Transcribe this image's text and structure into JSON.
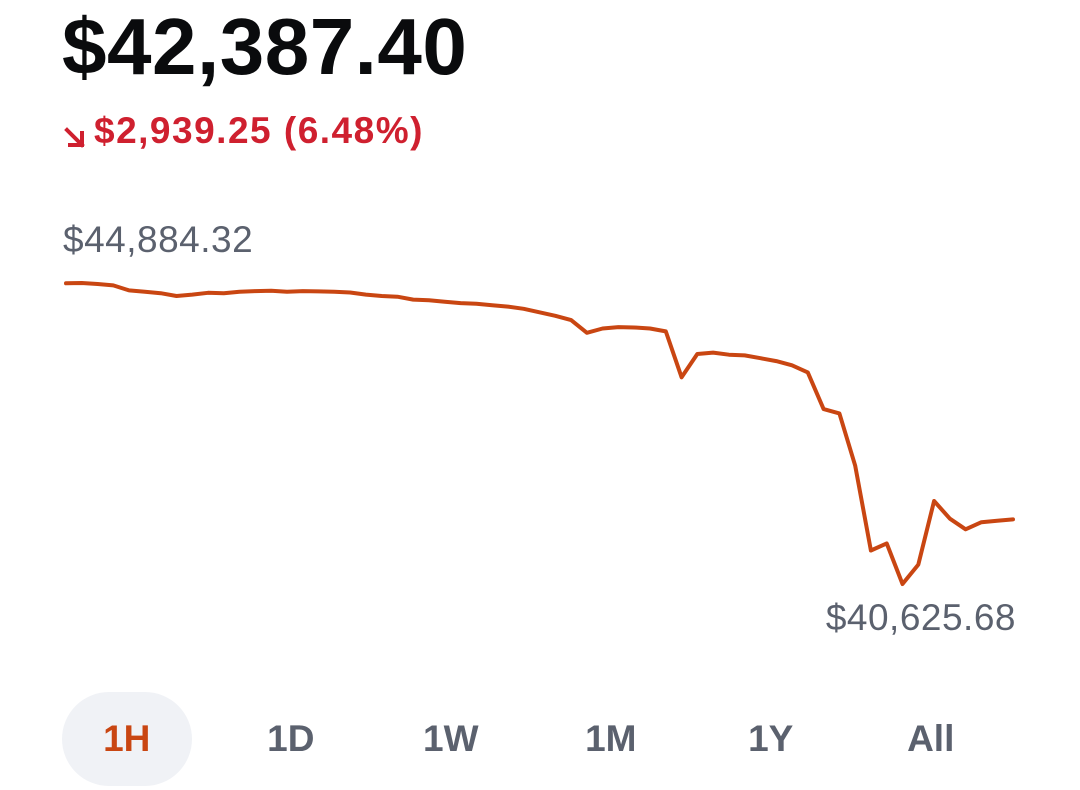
{
  "header": {
    "price": "$42,387.40",
    "change": "$2,939.25 (6.48%)",
    "change_direction": "down",
    "change_color": "#cf202f",
    "arrow_icon": "arrow-down-right-icon"
  },
  "chart_data": {
    "type": "line",
    "high_label": "$44,884.32",
    "low_label": "$40,625.68",
    "line_color": "#c94612",
    "grid": false,
    "x": [
      0,
      1,
      2,
      3,
      4,
      5,
      6,
      7,
      8,
      9,
      10,
      11,
      12,
      13,
      14,
      15,
      16,
      17,
      18,
      19,
      20,
      21,
      22,
      23,
      24,
      25,
      26,
      27,
      28,
      29,
      30,
      31,
      32,
      33,
      34,
      35,
      36,
      37,
      38,
      39,
      40,
      41,
      42,
      43,
      44,
      45,
      46,
      47,
      48,
      49,
      50,
      51,
      52,
      53,
      54,
      55,
      56,
      57,
      58,
      59,
      60
    ],
    "series": [
      {
        "values": [
          44880,
          44884,
          44870,
          44850,
          44780,
          44760,
          44740,
          44700,
          44720,
          44745,
          44740,
          44760,
          44770,
          44775,
          44760,
          44770,
          44765,
          44760,
          44750,
          44720,
          44700,
          44690,
          44650,
          44640,
          44620,
          44600,
          44590,
          44570,
          44550,
          44520,
          44470,
          44420,
          44360,
          44180,
          44240,
          44260,
          44255,
          44240,
          44200,
          43550,
          43880,
          43900,
          43870,
          43860,
          43820,
          43780,
          43720,
          43620,
          43100,
          43040,
          42300,
          41100,
          41200,
          40625,
          40900,
          41800,
          41550,
          41400,
          41500,
          41520,
          41540
        ]
      }
    ],
    "ylim": [
      40625.68,
      44884.32
    ]
  },
  "tabs": {
    "items": [
      {
        "label": "1H"
      },
      {
        "label": "1D"
      },
      {
        "label": "1W"
      },
      {
        "label": "1M"
      },
      {
        "label": "1Y"
      },
      {
        "label": "All"
      }
    ],
    "active": "1H",
    "active_color": "#c94612"
  }
}
